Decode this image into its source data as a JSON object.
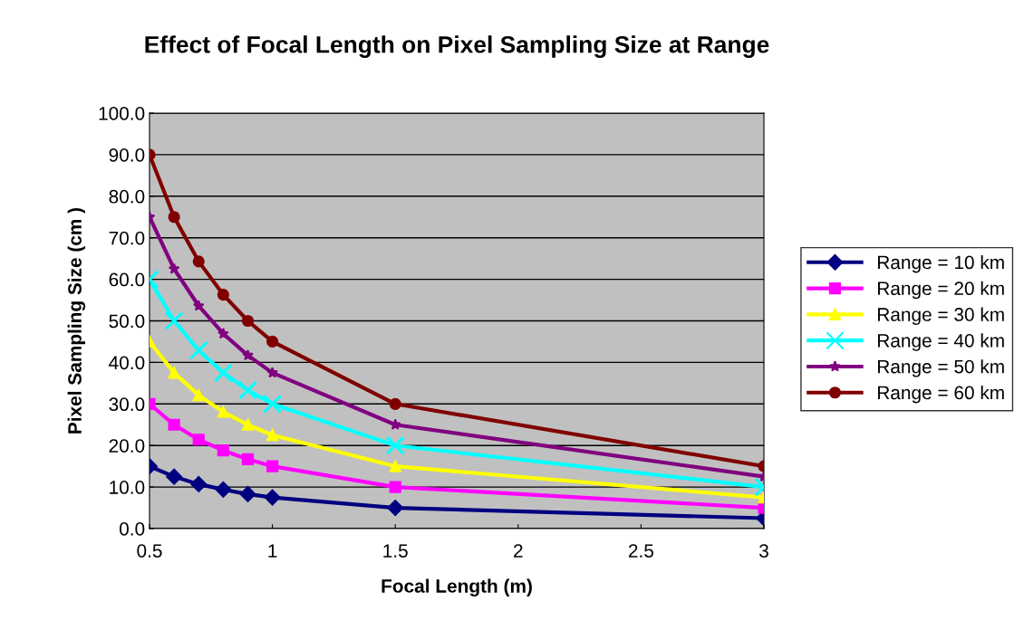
{
  "chart_data": {
    "type": "line",
    "title": "Effect of Focal Length on Pixel Sampling Size at Range",
    "xlabel": "Focal Length (m)",
    "ylabel": "Pixel Sampling Size (cm )",
    "x": [
      0.5,
      0.6,
      0.7,
      0.8,
      0.9,
      1.0,
      1.5,
      3.0
    ],
    "series": [
      {
        "name": "Range = 10 km",
        "color": "#000080",
        "marker": "diamond",
        "values": [
          15,
          12.5,
          10.7,
          9.4,
          8.3,
          7.5,
          5.0,
          2.5
        ]
      },
      {
        "name": "Range = 20 km",
        "color": "#ff00ff",
        "marker": "square",
        "values": [
          30,
          25,
          21.4,
          18.8,
          16.7,
          15,
          10,
          5
        ]
      },
      {
        "name": "Range = 30 km",
        "color": "#ffff00",
        "marker": "triangle",
        "values": [
          45,
          37.5,
          32.1,
          28.1,
          25,
          22.5,
          15,
          7.5
        ]
      },
      {
        "name": "Range = 40 km",
        "color": "#00ffff",
        "marker": "cross",
        "values": [
          60,
          50,
          42.9,
          37.5,
          33.3,
          30,
          20,
          10
        ]
      },
      {
        "name": "Range = 50 km",
        "color": "#800080",
        "marker": "star",
        "values": [
          75,
          62.5,
          53.6,
          46.9,
          41.7,
          37.5,
          25,
          12.5
        ]
      },
      {
        "name": "Range = 60 km",
        "color": "#800000",
        "marker": "circle",
        "values": [
          90,
          75,
          64.3,
          56.3,
          50,
          45,
          30,
          15
        ]
      }
    ],
    "xlim": [
      0.5,
      3
    ],
    "xticks": [
      0.5,
      1,
      1.5,
      2,
      2.5,
      3
    ],
    "ylim": [
      0,
      100
    ],
    "yticks": [
      {
        "value": 0,
        "label": "0.0"
      },
      {
        "value": 10,
        "label": "10.0"
      },
      {
        "value": 20,
        "label": "20.0"
      },
      {
        "value": 30,
        "label": "30.0"
      },
      {
        "value": 40,
        "label": "40.0"
      },
      {
        "value": 50,
        "label": "50.0"
      },
      {
        "value": 60,
        "label": "60.0"
      },
      {
        "value": 70,
        "label": "70.0"
      },
      {
        "value": 80,
        "label": "80.0"
      },
      {
        "value": 90,
        "label": "90.0"
      },
      {
        "value": 100,
        "label": "100.0"
      }
    ],
    "grid": "y",
    "legend": "right",
    "line_style": "solid"
  }
}
